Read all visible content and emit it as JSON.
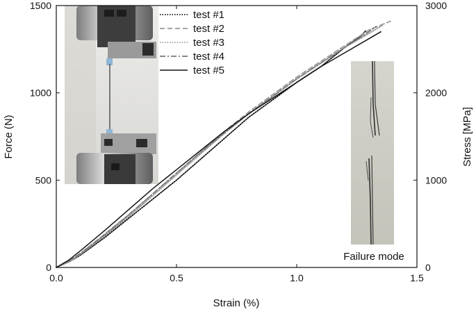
{
  "chart_data": {
    "type": "line",
    "xlabel": "Strain (%)",
    "ylabel": "Force (N)",
    "y2label": "Stress [MPa]",
    "xlim": [
      0.0,
      1.5
    ],
    "ylim": [
      0,
      1500
    ],
    "y2lim": [
      0,
      3000
    ],
    "xticks": [
      "0.0",
      "0.5",
      "1.0",
      "1.5"
    ],
    "yticks": [
      "0",
      "500",
      "1000",
      "1500"
    ],
    "y2ticks": [
      "0",
      "1000",
      "2000",
      "3000"
    ],
    "grid": false,
    "legend_position": "top-center",
    "series": [
      {
        "name": "test #1",
        "style": "dotted",
        "color": "#111111",
        "x": [
          0.0,
          0.05,
          0.1,
          0.2,
          0.3,
          0.4,
          0.5,
          0.6,
          0.7,
          0.8,
          0.9,
          1.0,
          1.1,
          1.2,
          1.27,
          1.29
        ],
        "y": [
          0,
          30,
          70,
          170,
          280,
          390,
          500,
          620,
          740,
          860,
          960,
          1060,
          1150,
          1260,
          1330,
          1360
        ]
      },
      {
        "name": "test #2",
        "style": "dashed",
        "color": "#999999",
        "x": [
          0.0,
          0.05,
          0.1,
          0.2,
          0.3,
          0.4,
          0.5,
          0.6,
          0.7,
          0.8,
          0.9,
          1.0,
          1.1,
          1.2,
          1.3,
          1.39
        ],
        "y": [
          0,
          35,
          80,
          190,
          300,
          420,
          540,
          660,
          780,
          890,
          990,
          1090,
          1180,
          1270,
          1360,
          1410
        ]
      },
      {
        "name": "test #3",
        "style": "dotted",
        "color": "#999999",
        "x": [
          0.0,
          0.05,
          0.1,
          0.2,
          0.3,
          0.4,
          0.5,
          0.6,
          0.7,
          0.8,
          0.9,
          1.0,
          1.1,
          1.2,
          1.3,
          1.36
        ],
        "y": [
          0,
          30,
          75,
          180,
          290,
          410,
          530,
          650,
          770,
          880,
          980,
          1080,
          1170,
          1260,
          1340,
          1390
        ]
      },
      {
        "name": "test #4",
        "style": "dashdot",
        "color": "#777777",
        "x": [
          0.0,
          0.05,
          0.1,
          0.2,
          0.3,
          0.4,
          0.5,
          0.6,
          0.7,
          0.8,
          0.9,
          1.0,
          1.1,
          1.2,
          1.3,
          1.33
        ],
        "y": [
          0,
          35,
          80,
          185,
          300,
          420,
          540,
          660,
          770,
          880,
          980,
          1080,
          1170,
          1260,
          1350,
          1380
        ]
      },
      {
        "name": "test #5",
        "style": "solid",
        "color": "#111111",
        "x": [
          0.0,
          0.05,
          0.1,
          0.2,
          0.3,
          0.4,
          0.5,
          0.6,
          0.7,
          0.8,
          0.9,
          1.0,
          1.1,
          1.2,
          1.3,
          1.35
        ],
        "y": [
          0,
          40,
          95,
          210,
          330,
          450,
          560,
          670,
          780,
          880,
          970,
          1060,
          1150,
          1230,
          1310,
          1350
        ]
      }
    ],
    "annotations": [
      "Failure mode"
    ]
  }
}
